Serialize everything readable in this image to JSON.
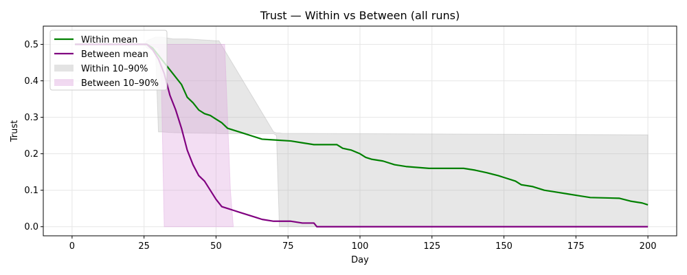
{
  "chart_data": {
    "type": "line",
    "title": "Trust — Within vs Between (all runs)",
    "xlabel": "Day",
    "ylabel": "Trust",
    "xlim": [
      -10,
      210
    ],
    "ylim": [
      -0.025,
      0.55
    ],
    "xticks": [
      0,
      25,
      50,
      75,
      100,
      125,
      150,
      175,
      200
    ],
    "yticks": [
      0.0,
      0.1,
      0.2,
      0.3,
      0.4,
      0.5
    ],
    "grid": true,
    "legend_position": "top-left",
    "series": [
      {
        "name": "Within mean",
        "kind": "line",
        "color": "#008000",
        "x": [
          1,
          26,
          28,
          30,
          32,
          34,
          36,
          38,
          40,
          42,
          44,
          46,
          48,
          50,
          52,
          54,
          56,
          58,
          60,
          62,
          66,
          70,
          76,
          80,
          84,
          92,
          94,
          97,
          100,
          102,
          104,
          108,
          112,
          116,
          124,
          136,
          140,
          144,
          148,
          150,
          154,
          156,
          160,
          164,
          168,
          172,
          176,
          180,
          190,
          194,
          198,
          200
        ],
        "y": [
          0.5,
          0.5,
          0.49,
          0.47,
          0.45,
          0.43,
          0.41,
          0.39,
          0.355,
          0.34,
          0.32,
          0.31,
          0.305,
          0.295,
          0.285,
          0.27,
          0.265,
          0.26,
          0.255,
          0.25,
          0.24,
          0.238,
          0.235,
          0.23,
          0.225,
          0.225,
          0.215,
          0.21,
          0.2,
          0.19,
          0.185,
          0.18,
          0.17,
          0.165,
          0.16,
          0.16,
          0.155,
          0.148,
          0.14,
          0.135,
          0.125,
          0.115,
          0.11,
          0.1,
          0.095,
          0.09,
          0.085,
          0.08,
          0.078,
          0.07,
          0.065,
          0.06
        ]
      },
      {
        "name": "Between mean",
        "kind": "line",
        "color": "#800080",
        "x": [
          1,
          26,
          28,
          30,
          32,
          34,
          36,
          38,
          40,
          42,
          44,
          46,
          48,
          50,
          52,
          54,
          56,
          58,
          60,
          62,
          64,
          66,
          70,
          74,
          76,
          80,
          84,
          85,
          200
        ],
        "y": [
          0.5,
          0.5,
          0.485,
          0.46,
          0.42,
          0.36,
          0.32,
          0.27,
          0.21,
          0.17,
          0.14,
          0.125,
          0.1,
          0.075,
          0.055,
          0.05,
          0.045,
          0.04,
          0.035,
          0.03,
          0.025,
          0.02,
          0.015,
          0.015,
          0.015,
          0.01,
          0.01,
          0.0,
          0.0
        ]
      },
      {
        "name": "Within 10–90%",
        "kind": "band",
        "color": "#b0b0b0",
        "x": [
          1,
          25,
          26,
          29,
          30,
          31,
          35,
          40,
          50,
          51,
          70,
          71,
          72,
          73,
          200
        ],
        "lower": [
          0.5,
          0.5,
          0.49,
          0.48,
          0.26,
          0.26,
          0.258,
          0.257,
          0.256,
          0.255,
          0.255,
          0.25,
          0.0,
          0.0,
          0.0
        ],
        "upper": [
          0.5,
          0.5,
          0.51,
          0.52,
          0.52,
          0.52,
          0.515,
          0.515,
          0.51,
          0.51,
          0.26,
          0.257,
          0.257,
          0.256,
          0.252
        ]
      },
      {
        "name": "Between 10–90%",
        "kind": "band",
        "color": "#dda0dd",
        "x": [
          1,
          25,
          26,
          30,
          31,
          32,
          52,
          53,
          54,
          55,
          56
        ],
        "lower": [
          0.5,
          0.5,
          0.5,
          0.49,
          0.4,
          0.0,
          0.0,
          0.0,
          0.0,
          0.0,
          0.0
        ],
        "upper": [
          0.5,
          0.5,
          0.5,
          0.5,
          0.5,
          0.5,
          0.5,
          0.5,
          0.3,
          0.1,
          0.0
        ]
      }
    ]
  }
}
